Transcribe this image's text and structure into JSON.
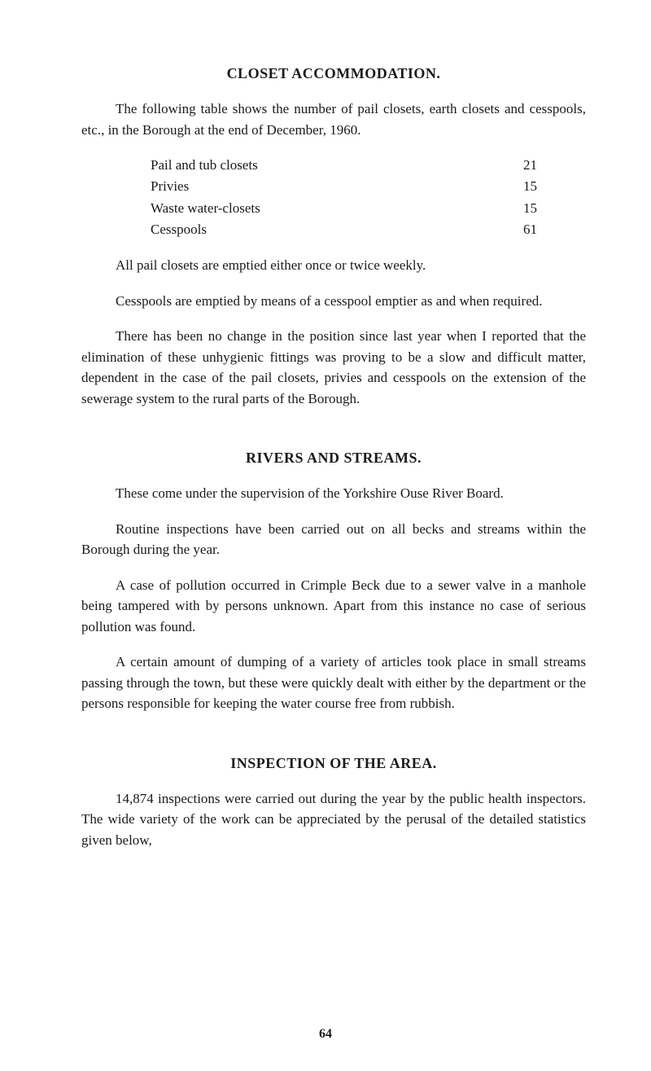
{
  "section1": {
    "heading": "CLOSET ACCOMMODATION.",
    "intro": "The following table shows the number of pail closets, earth closets and cesspools, etc., in the Borough at the end of December, 1960.",
    "table": [
      {
        "label": "Pail and tub closets",
        "value": "21"
      },
      {
        "label": "Privies",
        "value": "15"
      },
      {
        "label": "Waste water-closets",
        "value": "15"
      },
      {
        "label": "Cesspools",
        "value": "61"
      }
    ],
    "p1": "All pail closets are emptied either once or twice weekly.",
    "p2": "Cesspools are emptied by means of a cesspool emptier as and when required.",
    "p3": "There has been no change in the position since last year when I reported that the elimination of these unhygienic fittings was proving to be a slow and difficult matter, dependent in the case of the pail closets, privies and cesspools on the extension of the sewerage system to the rural parts of the Borough."
  },
  "section2": {
    "heading": "RIVERS AND STREAMS.",
    "p1": "These come under the supervision of the Yorkshire Ouse River Board.",
    "p2": "Routine inspections have been carried out on all becks and streams within the Borough during the year.",
    "p3": "A case of pollution occurred in Crimple Beck due to a sewer valve in a manhole being tampered with by persons unknown. Apart from this instance no case of serious pollution was found.",
    "p4": "A certain amount of dumping of a variety of articles took place in small streams passing through the town, but these were quickly dealt with either by the department or the persons responsible for keeping the water course free from rubbish."
  },
  "section3": {
    "heading": "INSPECTION OF THE AREA.",
    "p1": "14,874 inspections were carried out during the year by the public health inspectors. The wide variety of the work can be appreciated by the perusal of the detailed statistics given below,"
  },
  "pageNumber": "64"
}
